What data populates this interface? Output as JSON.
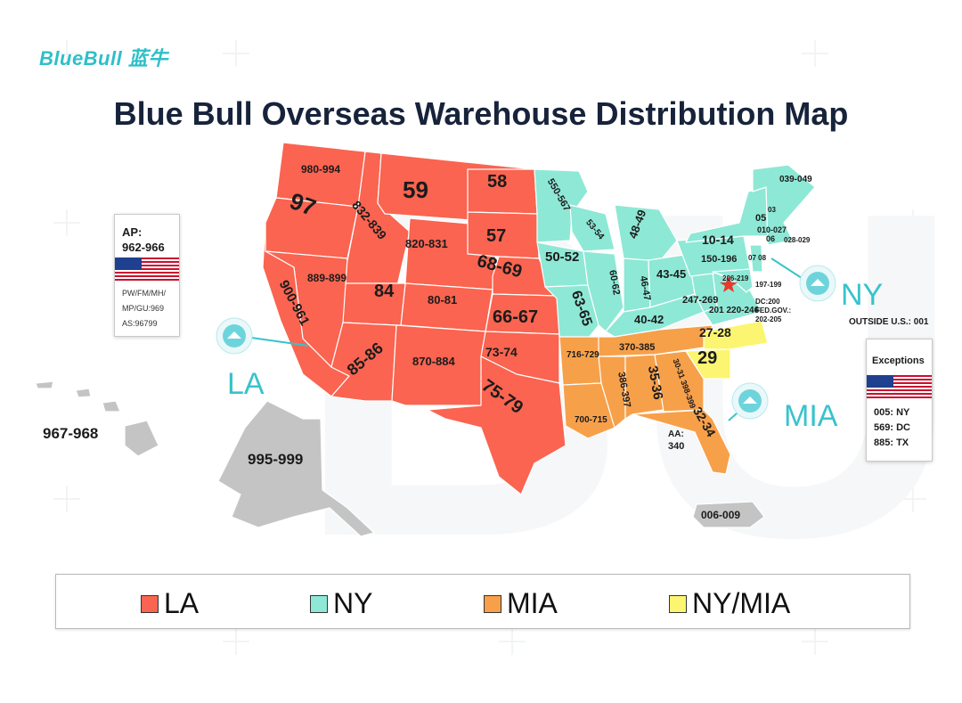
{
  "brand": {
    "logo_text": "BlueBull 蓝牛"
  },
  "title": "Blue Bull Overseas Warehouse Distribution Map",
  "colors": {
    "la": "#fa6450",
    "ny": "#8ee8d6",
    "mia": "#f7a04a",
    "ny_mia": "#fcf571",
    "other": "#c4c4c4",
    "accent": "#38c3cc"
  },
  "hubs": {
    "la": "LA",
    "ny": "NY",
    "mia": "MIA"
  },
  "ap_card": {
    "title": "AP:",
    "range": "962-966",
    "lines": [
      "PW/FM/MH/",
      "MP/GU:969",
      "AS:96799"
    ]
  },
  "exceptions": {
    "title": "Exceptions",
    "items": [
      "005: NY",
      "569: DC",
      "885: TX"
    ]
  },
  "outside_us": "OUTSIDE U.S.: 001",
  "aa": {
    "label": "AA:",
    "value": "340"
  },
  "dc": {
    "line1": "DC:200",
    "line2": "FED.GOV.:",
    "line3": "202-205"
  },
  "zips": {
    "wa": "980-994",
    "or": "97",
    "id": "832-839",
    "mt": "59",
    "nd": "58",
    "sd": "57",
    "wy": "820-831",
    "ne": "68-69",
    "ks": "66-67",
    "co": "80-81",
    "ut": "84",
    "nv": "889-899",
    "ca": "900-961",
    "az": "85-86",
    "nm": "870-884",
    "ok": "73-74",
    "tx": "75-79",
    "mn": "550-567",
    "wi": "53-54",
    "ia": "50-52",
    "mo": "63-65",
    "il": "60-62",
    "mi": "48-49",
    "in": "46-47",
    "oh": "43-45",
    "ky": "40-42",
    "wv": "247-269",
    "va": "201 220-246",
    "pa": "150-196",
    "ny": "10-14",
    "me": "039-049",
    "vt": "05",
    "nh": "03",
    "ma": "010-027",
    "ri": "028-029",
    "ct": "06",
    "nj": "07 08",
    "de": "197-199",
    "md": "206-219",
    "ar": "716-729",
    "la": "700-715",
    "ms": "386-397",
    "al": "35-36",
    "tn": "370-385",
    "ga": "30-31 398-399",
    "fl": "32-34",
    "nc": "27-28",
    "sc": "29",
    "hi": "967-968",
    "ak": "995-999",
    "pr": "006-009"
  },
  "legend": [
    {
      "label": "LA",
      "color": "#fa6450"
    },
    {
      "label": "NY",
      "color": "#8ee8d6"
    },
    {
      "label": "MIA",
      "color": "#f7a04a"
    },
    {
      "label": "NY/MIA",
      "color": "#fcf571"
    }
  ]
}
